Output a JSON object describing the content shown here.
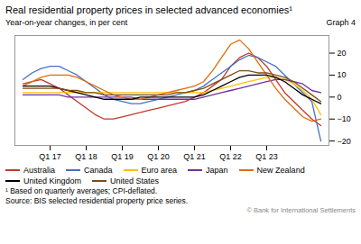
{
  "chart_data": {
    "type": "line",
    "title": "Real residential property prices in selected advanced economies¹",
    "subtitle": "Year-on-year changes, in per cent",
    "annotations": [
      "Graph 4",
      "¹  Based on quarterly averages; CPI-deflated.",
      "Source: BIS selected residential property price series.",
      "© Bank for International Settlements"
    ],
    "categories": [
      null,
      null,
      null,
      "Q1 17",
      null,
      null,
      null,
      "Q1 18",
      null,
      null,
      null,
      "Q1 19",
      null,
      null,
      null,
      "Q1 20",
      null,
      null,
      null,
      "Q1 21",
      null,
      null,
      null,
      "Q1 22",
      null,
      null,
      null,
      "Q1 23",
      null,
      null,
      null,
      null,
      null,
      null
    ],
    "series": [
      {
        "name": "Australia",
        "color": "#c0392b",
        "values": [
          6,
          7,
          8,
          6,
          4,
          1,
          -2,
          -5,
          -8,
          -10,
          -10,
          -9,
          -8,
          -7,
          -6,
          -5,
          -4,
          -3,
          -2,
          0,
          2,
          5,
          8,
          14,
          18,
          20,
          18,
          14,
          8,
          2,
          -2,
          -6,
          -10,
          -13
        ]
      },
      {
        "name": "Canada",
        "color": "#4472c4",
        "values": [
          8,
          11,
          13,
          14,
          14,
          12,
          10,
          7,
          4,
          1,
          -1,
          -2,
          -3,
          -3,
          -2,
          -1,
          0,
          1,
          2,
          3,
          5,
          8,
          11,
          14,
          17,
          19,
          18,
          16,
          14,
          10,
          6,
          2,
          -2,
          -20
        ]
      },
      {
        "name": "Euro area",
        "color": "#ffc000",
        "values": [
          2,
          2,
          2,
          2,
          2,
          2,
          2,
          2,
          2,
          2,
          2,
          2,
          2,
          2,
          2,
          2,
          2,
          2,
          2,
          2,
          2,
          3,
          4,
          5,
          6,
          7,
          8,
          9,
          9,
          8,
          6,
          3,
          -1,
          -8
        ]
      },
      {
        "name": "Japan",
        "color": "#7030a0",
        "values": [
          1,
          1,
          1,
          1,
          1,
          0,
          0,
          0,
          0,
          0,
          0,
          0,
          0,
          -1,
          -1,
          -1,
          -1,
          -1,
          -1,
          -1,
          0,
          1,
          2,
          3,
          4,
          5,
          6,
          7,
          8,
          8,
          7,
          6,
          3,
          2
        ]
      },
      {
        "name": "New Zealand",
        "color": "#e36c09",
        "values": [
          5,
          7,
          9,
          10,
          10,
          10,
          9,
          7,
          5,
          3,
          1,
          0,
          -1,
          -1,
          0,
          1,
          2,
          3,
          4,
          5,
          7,
          12,
          18,
          24,
          26,
          22,
          16,
          10,
          4,
          -1,
          -5,
          -9,
          -11,
          -10
        ]
      },
      {
        "name": "United Kingdom",
        "color": "#000000",
        "values": [
          5,
          5,
          5,
          5,
          4,
          3,
          2,
          1,
          0,
          -1,
          -1,
          -1,
          -1,
          0,
          0,
          0,
          0,
          0,
          0,
          0,
          1,
          3,
          5,
          7,
          9,
          10,
          10,
          10,
          9,
          7,
          4,
          1,
          -1,
          -3
        ]
      },
      {
        "name": "United States",
        "color": "#7f4b1a",
        "values": [
          4,
          4,
          4,
          4,
          4,
          3,
          3,
          2,
          2,
          1,
          1,
          1,
          1,
          1,
          1,
          1,
          1,
          2,
          2,
          3,
          4,
          6,
          8,
          10,
          12,
          12,
          11,
          11,
          10,
          9,
          7,
          4,
          1,
          -2
        ]
      }
    ],
    "ylim": [
      -22,
      28
    ],
    "yticks": [
      -20,
      -10,
      0,
      10,
      20
    ],
    "grid": false
  }
}
